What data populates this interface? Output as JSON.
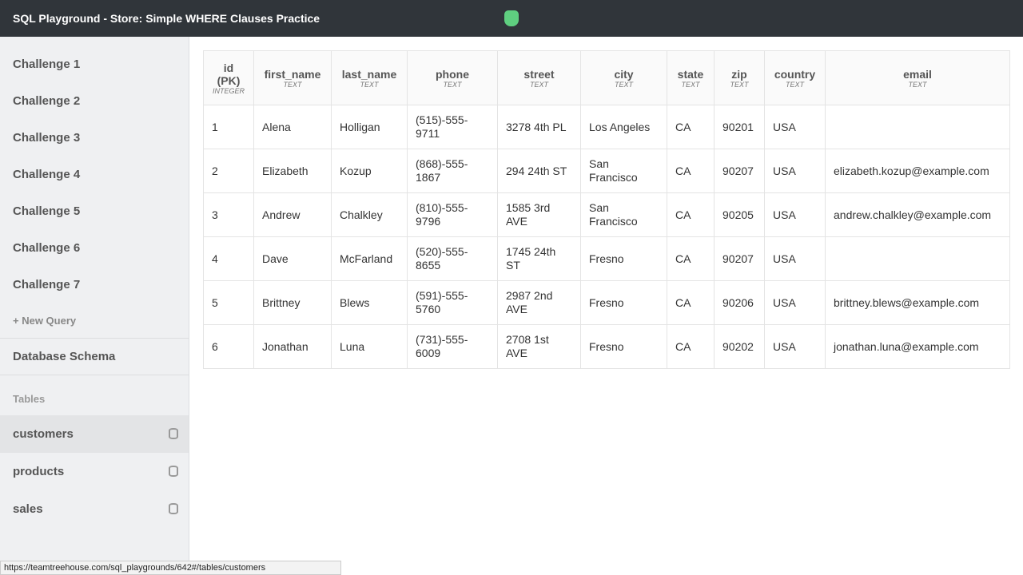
{
  "header": {
    "title": "SQL Playground - Store: Simple WHERE Clauses Practice",
    "logo": "treehouse-logo"
  },
  "sidebar": {
    "challenges": [
      "Challenge 1",
      "Challenge 2",
      "Challenge 3",
      "Challenge 4",
      "Challenge 5",
      "Challenge 6",
      "Challenge 7"
    ],
    "new_query": "+ New Query",
    "schema": "Database Schema",
    "tables_label": "Tables",
    "tables": [
      {
        "name": "customers",
        "icon": "database-icon",
        "active": true
      },
      {
        "name": "products",
        "icon": "database-icon"
      },
      {
        "name": "sales",
        "icon": "database-icon"
      }
    ]
  },
  "table": {
    "columns": [
      {
        "name": "id (PK)",
        "type": "INTEGER"
      },
      {
        "name": "first_name",
        "type": "TEXT"
      },
      {
        "name": "last_name",
        "type": "TEXT"
      },
      {
        "name": "phone",
        "type": "TEXT"
      },
      {
        "name": "street",
        "type": "TEXT"
      },
      {
        "name": "city",
        "type": "TEXT"
      },
      {
        "name": "state",
        "type": "TEXT"
      },
      {
        "name": "zip",
        "type": "TEXT"
      },
      {
        "name": "country",
        "type": "TEXT"
      },
      {
        "name": "email",
        "type": "TEXT"
      }
    ],
    "rows": [
      [
        "1",
        "Alena",
        "Holligan",
        "(515)-555-9711",
        "3278 4th PL",
        "Los Angeles",
        "CA",
        "90201",
        "USA",
        ""
      ],
      [
        "2",
        "Elizabeth",
        "Kozup",
        "(868)-555-1867",
        "294 24th ST",
        "San Francisco",
        "CA",
        "90207",
        "USA",
        "elizabeth.kozup@example.com"
      ],
      [
        "3",
        "Andrew",
        "Chalkley",
        "(810)-555-9796",
        "1585 3rd AVE",
        "San Francisco",
        "CA",
        "90205",
        "USA",
        "andrew.chalkley@example.com"
      ],
      [
        "4",
        "Dave",
        "McFarland",
        "(520)-555-8655",
        "1745 24th ST",
        "Fresno",
        "CA",
        "90207",
        "USA",
        ""
      ],
      [
        "5",
        "Brittney",
        "Blews",
        "(591)-555-5760",
        "2987 2nd AVE",
        "Fresno",
        "CA",
        "90206",
        "USA",
        "brittney.blews@example.com"
      ],
      [
        "6",
        "Jonathan",
        "Luna",
        "(731)-555-6009",
        "2708 1st AVE",
        "Fresno",
        "CA",
        "90202",
        "USA",
        "jonathan.luna@example.com"
      ]
    ]
  },
  "status_url": "https://teamtreehouse.com/sql_playgrounds/642#/tables/customers"
}
